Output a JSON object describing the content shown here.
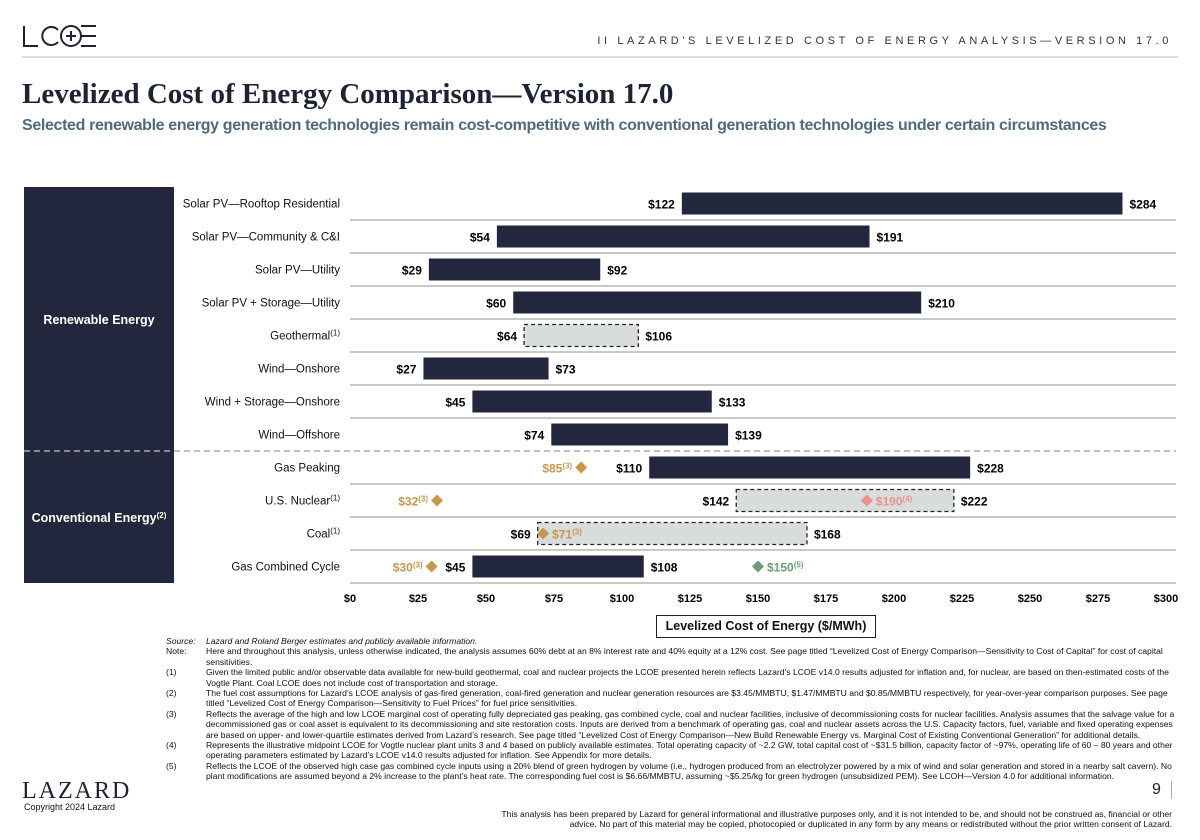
{
  "header": {
    "logo_text": "LCOE",
    "section": "II   LAZARD'S LEVELIZED COST OF ENERGY ANALYSIS—VERSION 17.0"
  },
  "title": "Levelized Cost of Energy Comparison—Version 17.0",
  "subtitle": "Selected renewable energy generation technologies remain cost-competitive with conventional generation technologies under certain circumstances",
  "chart_data": {
    "type": "bar",
    "subtype": "floating-range",
    "xlabel": "Levelized Cost of Energy ($/MWh)",
    "xlim": [
      0,
      300
    ],
    "xticks": [
      0,
      25,
      50,
      75,
      100,
      125,
      150,
      175,
      200,
      225,
      250,
      275,
      300
    ],
    "tick_labels": [
      "$0",
      "$25",
      "$50",
      "$75",
      "$100",
      "$125",
      "$150",
      "$175",
      "$200",
      "$225",
      "$250",
      "$275",
      "$300"
    ],
    "groups": [
      {
        "label": "Renewable Energy",
        "sup": ""
      },
      {
        "label": "Conventional Energy",
        "sup": "(2)"
      }
    ],
    "colors": {
      "bar": "#23273d",
      "dashed_fill": "#d8dcdc",
      "marginal": "#c9964a",
      "vogtle": "#e8948a",
      "hydrogen": "#6a9e78"
    },
    "categories": [
      {
        "label": "Solar PV—Rooftop Residential",
        "sup": "",
        "group": 0,
        "low": 122,
        "high": 284,
        "style": "solid",
        "low_label": "$122",
        "high_label": "$284",
        "markers": []
      },
      {
        "label": "Solar PV—Community & C&I",
        "sup": "",
        "group": 0,
        "low": 54,
        "high": 191,
        "style": "solid",
        "low_label": "$54",
        "high_label": "$191",
        "markers": []
      },
      {
        "label": "Solar PV—Utility",
        "sup": "",
        "group": 0,
        "low": 29,
        "high": 92,
        "style": "solid",
        "low_label": "$29",
        "high_label": "$92",
        "markers": []
      },
      {
        "label": "Solar PV + Storage—Utility",
        "sup": "",
        "group": 0,
        "low": 60,
        "high": 210,
        "style": "solid",
        "low_label": "$60",
        "high_label": "$210",
        "markers": []
      },
      {
        "label": "Geothermal",
        "sup": "(1)",
        "group": 0,
        "low": 64,
        "high": 106,
        "style": "dashed",
        "low_label": "$64",
        "high_label": "$106",
        "markers": []
      },
      {
        "label": "Wind—Onshore",
        "sup": "",
        "group": 0,
        "low": 27,
        "high": 73,
        "style": "solid",
        "low_label": "$27",
        "high_label": "$73",
        "markers": []
      },
      {
        "label": "Wind + Storage—Onshore",
        "sup": "",
        "group": 0,
        "low": 45,
        "high": 133,
        "style": "solid",
        "low_label": "$45",
        "high_label": "$133",
        "markers": []
      },
      {
        "label": "Wind—Offshore",
        "sup": "",
        "group": 0,
        "low": 74,
        "high": 139,
        "style": "solid",
        "low_label": "$74",
        "high_label": "$139",
        "markers": []
      },
      {
        "label": "Gas Peaking",
        "sup": "",
        "group": 1,
        "low": 110,
        "high": 228,
        "style": "solid",
        "low_label": "$110",
        "high_label": "$228",
        "markers": [
          {
            "value": 85,
            "label": "$85",
            "sup": "(3)",
            "color": "marginal",
            "side": "left"
          }
        ]
      },
      {
        "label": "U.S. Nuclear",
        "sup": "(1)",
        "group": 1,
        "low": 142,
        "high": 222,
        "style": "dashed",
        "low_label": "$142",
        "high_label": "$222",
        "markers": [
          {
            "value": 32,
            "label": "$32",
            "sup": "(3)",
            "color": "marginal",
            "side": "left"
          },
          {
            "value": 190,
            "label": "$190",
            "sup": "(4)",
            "color": "vogtle",
            "side": "right"
          }
        ]
      },
      {
        "label": "Coal",
        "sup": "(1)",
        "group": 1,
        "low": 69,
        "high": 168,
        "style": "dashed",
        "low_label": "$69",
        "high_label": "$168",
        "markers": [
          {
            "value": 71,
            "label": "$71",
            "sup": "(3)",
            "color": "marginal",
            "side": "right"
          }
        ]
      },
      {
        "label": "Gas Combined Cycle",
        "sup": "",
        "group": 1,
        "low": 45,
        "high": 108,
        "style": "solid",
        "low_label": "$45",
        "high_label": "$108",
        "markers": [
          {
            "value": 30,
            "label": "$30",
            "sup": "(3)",
            "color": "marginal",
            "side": "left"
          },
          {
            "value": 150,
            "label": "$150",
            "sup": "(5)",
            "color": "hydrogen",
            "side": "right"
          }
        ]
      }
    ]
  },
  "notes": [
    {
      "label": "Source:",
      "text": "Lazard and Roland Berger estimates and publicly available information.",
      "italic": true
    },
    {
      "label": "Note:",
      "text": "Here and throughout this analysis, unless otherwise indicated, the analysis assumes 60% debt at an 8% interest rate and 40% equity at a 12% cost. See page titled “Levelized Cost of Energy Comparison—Sensitivity to Cost of Capital” for cost of capital sensitivities."
    },
    {
      "label": "(1)",
      "text": "Given the limited public and/or observable data available for new-build geothermal, coal and nuclear projects the LCOE presented herein reflects Lazard’s LCOE v14.0 results adjusted for inflation and, for nuclear, are based on then-estimated costs of the Vogtle Plant. Coal LCOE does not include cost of transportation and storage."
    },
    {
      "label": "(2)",
      "text": "The fuel cost assumptions for Lazard’s LCOE analysis of gas-fired generation, coal-fired generation and nuclear generation resources are $3.45/MMBTU, $1.47/MMBTU and $0.85/MMBTU respectively, for year-over-year comparison purposes. See page titled “Levelized Cost of Energy Comparison—Sensitivity to Fuel Prices” for fuel price sensitivities."
    },
    {
      "label": "(3)",
      "text": "Reflects the average of the high and low LCOE marginal cost of operating fully depreciated gas peaking, gas combined cycle, coal and nuclear facilities, inclusive of decommissioning costs for nuclear facilities. Analysis assumes that the salvage value for a decommissioned gas or coal asset is equivalent to its decommissioning and site restoration costs. Inputs are derived from a benchmark of operating gas, coal and nuclear assets across the U.S. Capacity factors, fuel, variable and fixed operating expenses are based on upper- and lower-quartile estimates derived from Lazard’s research. See page titled “Levelized Cost of Energy Comparison—New Build Renewable Energy vs. Marginal Cost of Existing Conventional Generation” for additional details."
    },
    {
      "label": "(4)",
      "text": "Represents the illustrative midpoint LCOE for Vogtle nuclear plant units 3 and 4 based on publicly available estimates. Total operating capacity of ~2.2 GW, total capital cost of ~$31.5 billion, capacity factor of ~97%, operating life of 60 – 80 years and other operating parameters estimated by Lazard’s LCOE v14.0 results adjusted for inflation. See Appendix for more details."
    },
    {
      "label": "(5)",
      "text": "Reflects the LCOE of the observed high case gas combined cycle inputs using a 20% blend of green hydrogen by volume (i.e., hydrogen produced from an electrolyzer powered by a mix of wind and solar generation and stored in a nearby salt cavern). No plant modifications are assumed beyond a 2% increase to the plant’s heat rate. The corresponding fuel cost is $6.66/MMBTU, assuming ~$5.25/kg for green hydrogen (unsubsidized PEM). See LCOH—Version 4.0 for additional information."
    }
  ],
  "footer": {
    "logo_text": "LAZARD",
    "copyright": "Copyright 2024 Lazard",
    "page": "9",
    "disclaimer": "This analysis has been prepared by Lazard for general informational and illustrative purposes only, and it is not intended to be, and should not be construed as, financial or other advice. No part of this material may be copied, photocopied or duplicated in any form by any means or redistributed without the prior written consent of Lazard."
  }
}
